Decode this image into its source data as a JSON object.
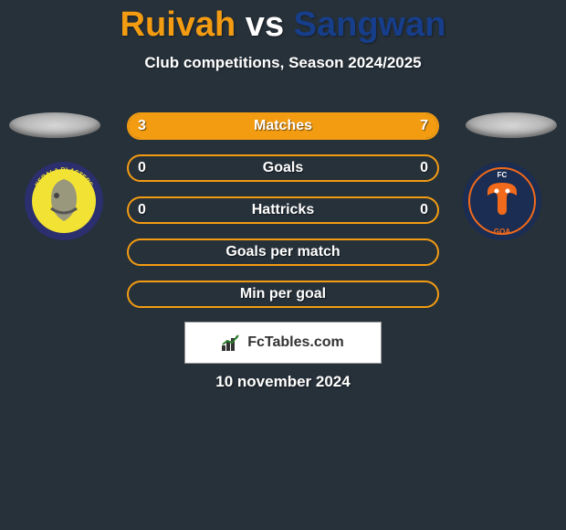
{
  "title": {
    "left": "Ruivah",
    "sep": " vs ",
    "right": "Sangwan"
  },
  "title_colors": {
    "left": "#f39c12",
    "sep": "#ffffff",
    "right": "#173e8a"
  },
  "subtitle": "Club competitions, Season 2024/2025",
  "background_color": "#27313a",
  "accent_color": "#f39c12",
  "text_color": "#ffffff",
  "date": "10 november 2024",
  "brand": "FcTables.com",
  "bars": [
    {
      "label": "Matches",
      "left_val": "3",
      "right_val": "7",
      "left_pct": 30,
      "right_pct": 70
    },
    {
      "label": "Goals",
      "left_val": "0",
      "right_val": "0",
      "left_pct": 0,
      "right_pct": 0
    },
    {
      "label": "Hattricks",
      "left_val": "0",
      "right_val": "0",
      "left_pct": 0,
      "right_pct": 0
    },
    {
      "label": "Goals per match",
      "left_val": "",
      "right_val": "",
      "left_pct": 0,
      "right_pct": 0
    },
    {
      "label": "Min per goal",
      "left_val": "",
      "right_val": "",
      "left_pct": 0,
      "right_pct": 0
    }
  ],
  "club_left": {
    "name": "Kerala Blasters",
    "ring_outer": "#2b2f6e",
    "ring_inner": "#f2e233",
    "text": "KERALA BLASTERS"
  },
  "club_right": {
    "name": "FC Goa",
    "bg": "#1b2d52",
    "accent": "#f26a1b",
    "text": "FC GOA"
  }
}
